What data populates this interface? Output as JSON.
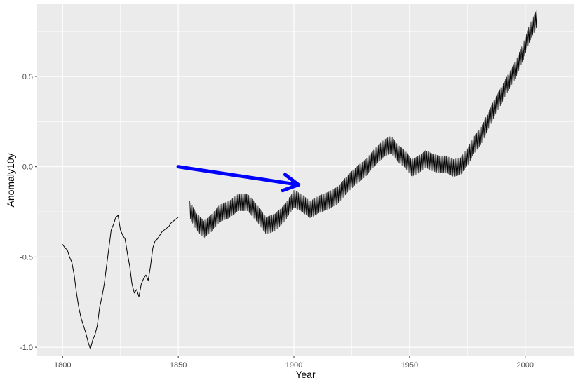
{
  "colors": {
    "panel_bg": "#EBEBEB",
    "grid_major": "#FFFFFF",
    "line": "#000000",
    "arrow": "#0000FF"
  },
  "chart_data": {
    "type": "line",
    "title": "",
    "xlabel": "Year",
    "ylabel": "Anomaly10y",
    "xlim": [
      1789,
      2021
    ],
    "ylim": [
      -1.05,
      0.9
    ],
    "x_ticks": [
      1800,
      1850,
      1900,
      1950,
      2000
    ],
    "x_tick_labels": [
      "1800",
      "1850",
      "1900",
      "1950",
      "2000"
    ],
    "y_ticks": [
      -1.0,
      -0.5,
      0.0,
      0.5
    ],
    "y_tick_labels": [
      "-1.0",
      "-0.5",
      "0.0",
      "0.5"
    ],
    "grid": true,
    "series": [
      {
        "style": "smooth",
        "x": [
          1800,
          1801,
          1802,
          1803,
          1804,
          1805,
          1806,
          1807,
          1808,
          1809,
          1810,
          1811,
          1812,
          1813,
          1814,
          1815,
          1816,
          1817,
          1818,
          1819,
          1820,
          1821,
          1822,
          1823,
          1824,
          1825,
          1826,
          1827,
          1828,
          1829,
          1830,
          1831,
          1832,
          1833,
          1834,
          1835,
          1836,
          1837,
          1838,
          1839,
          1840,
          1841,
          1842,
          1843,
          1844,
          1845,
          1846,
          1847,
          1848,
          1849,
          1850
        ],
        "y": [
          -0.43,
          -0.45,
          -0.46,
          -0.5,
          -0.53,
          -0.6,
          -0.7,
          -0.78,
          -0.84,
          -0.88,
          -0.92,
          -0.97,
          -1.01,
          -0.96,
          -0.93,
          -0.88,
          -0.78,
          -0.72,
          -0.65,
          -0.55,
          -0.45,
          -0.35,
          -0.32,
          -0.28,
          -0.27,
          -0.35,
          -0.38,
          -0.4,
          -0.48,
          -0.55,
          -0.65,
          -0.7,
          -0.68,
          -0.72,
          -0.65,
          -0.62,
          -0.6,
          -0.63,
          -0.55,
          -0.45,
          -0.41,
          -0.4,
          -0.38,
          -0.36,
          -0.35,
          -0.34,
          -0.33,
          -0.31,
          -0.3,
          -0.29,
          -0.28
        ]
      },
      {
        "style": "oscillating",
        "x": [
          1855,
          1858,
          1861,
          1864,
          1868,
          1872,
          1876,
          1880,
          1884,
          1888,
          1892,
          1896,
          1900,
          1903,
          1907,
          1911,
          1915,
          1919,
          1923,
          1927,
          1931,
          1935,
          1939,
          1942,
          1945,
          1948,
          1951,
          1954,
          1957,
          1960,
          1963,
          1966,
          1969,
          1972,
          1975,
          1978,
          1981,
          1984,
          1987,
          1990,
          1993,
          1996,
          1999,
          2002,
          2005
        ],
        "y": [
          -0.26,
          -0.33,
          -0.37,
          -0.34,
          -0.28,
          -0.26,
          -0.22,
          -0.22,
          -0.28,
          -0.35,
          -0.33,
          -0.28,
          -0.2,
          -0.22,
          -0.26,
          -0.23,
          -0.21,
          -0.18,
          -0.12,
          -0.07,
          -0.03,
          0.03,
          0.08,
          0.1,
          0.05,
          0.02,
          -0.03,
          -0.01,
          0.02,
          0.0,
          -0.01,
          -0.01,
          -0.03,
          -0.02,
          0.03,
          0.1,
          0.15,
          0.23,
          0.31,
          0.38,
          0.45,
          0.52,
          0.61,
          0.72,
          0.8
        ]
      }
    ],
    "annotations": [
      {
        "type": "arrow",
        "from": [
          1850,
          0.0
        ],
        "to": [
          1902,
          -0.1
        ],
        "color": "#0000FF"
      }
    ]
  }
}
